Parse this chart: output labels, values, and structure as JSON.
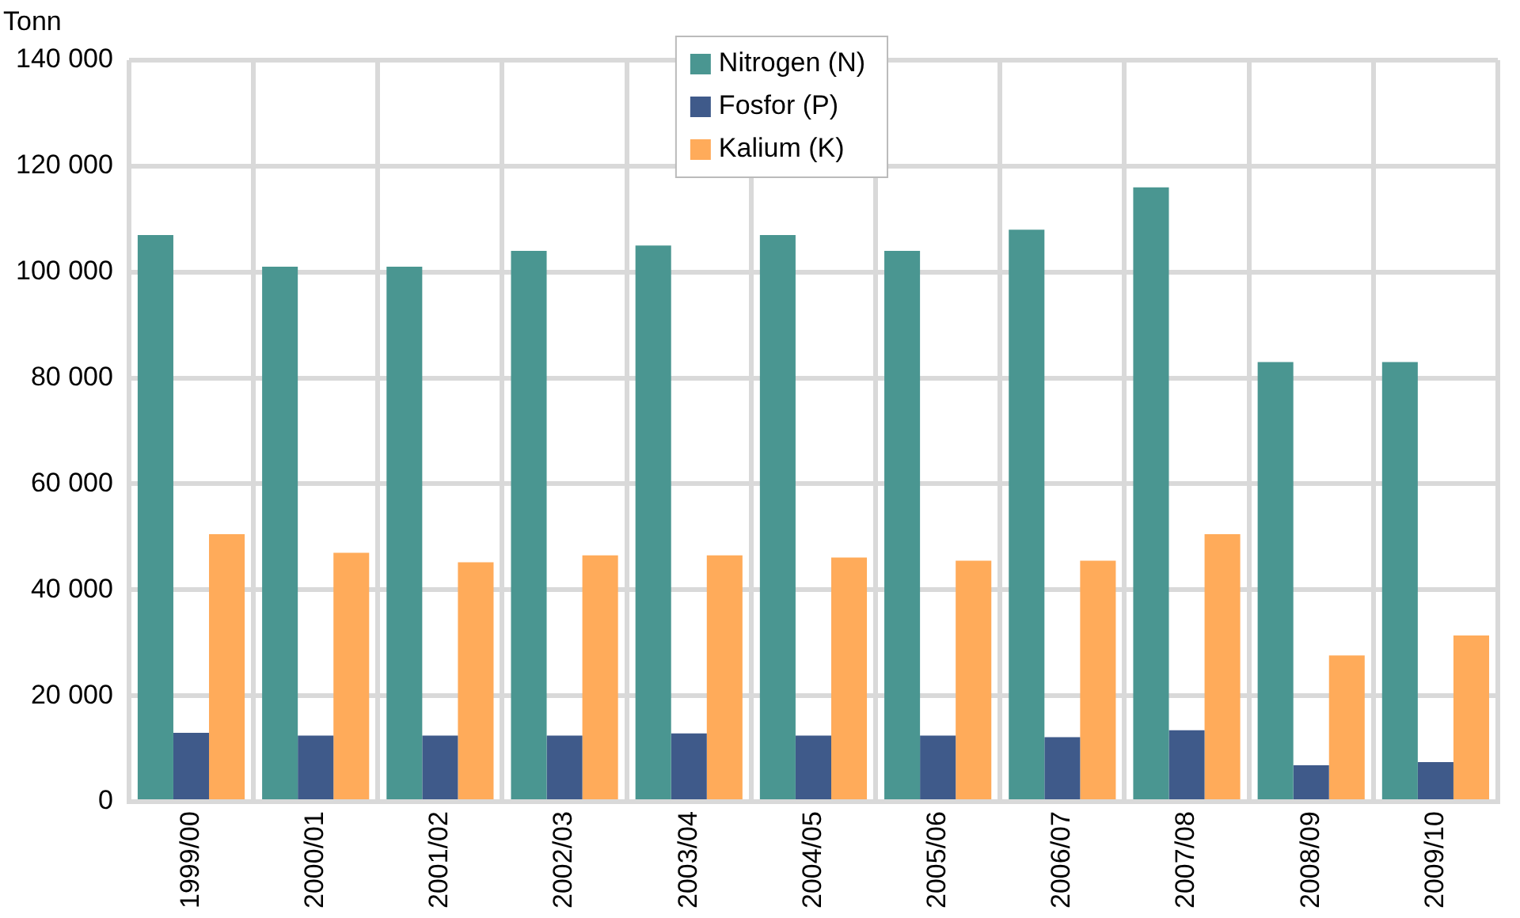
{
  "chart_data": {
    "type": "bar",
    "ylabel": "Tonn",
    "categories": [
      "1999/00",
      "2000/01",
      "2001/02",
      "2002/03",
      "2003/04",
      "2004/05",
      "2005/06",
      "2006/07",
      "2007/08",
      "2008/09",
      "2009/10"
    ],
    "series": [
      {
        "name": "Nitrogen (N)",
        "color": "#4a9691",
        "values": [
          107000,
          101000,
          101000,
          104000,
          105000,
          107000,
          104000,
          108000,
          116000,
          83000,
          83000
        ]
      },
      {
        "name": "Fosfor (P)",
        "color": "#3f5a8a",
        "values": [
          13000,
          12500,
          12500,
          12500,
          12900,
          12500,
          12500,
          12200,
          13500,
          6900,
          7500
        ]
      },
      {
        "name": "Kalium (K)",
        "color": "#ffab5a",
        "values": [
          50500,
          47000,
          45200,
          46500,
          46500,
          46100,
          45500,
          45500,
          50500,
          27600,
          31400
        ]
      }
    ],
    "ylim": [
      0,
      140000
    ],
    "yticks": [
      0,
      {
        "value": 20000,
        "label": "20 000"
      },
      {
        "value": 40000,
        "label": "40 000"
      },
      {
        "value": 60000,
        "label": "60 000"
      },
      {
        "value": 80000,
        "label": "80 000"
      },
      {
        "value": 100000,
        "label": "100 000"
      },
      {
        "value": 120000,
        "label": "120 000"
      },
      {
        "value": 140000,
        "label": "140 000"
      }
    ],
    "grid": true,
    "legend": "top"
  }
}
